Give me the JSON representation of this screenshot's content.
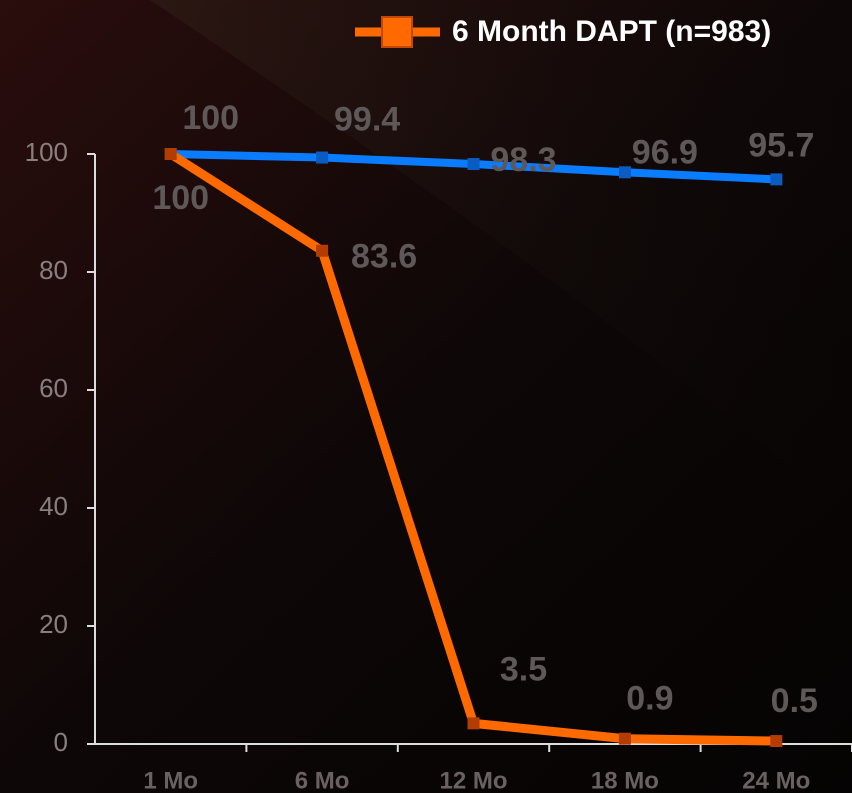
{
  "chart_data": {
    "type": "line",
    "categories": [
      "1 Mo",
      "6 Mo",
      "12 Mo",
      "18 Mo",
      "24 Mo"
    ],
    "series": [
      {
        "color": "#0a7cff",
        "values": [
          100,
          99.4,
          98.3,
          96.9,
          95.7
        ]
      },
      {
        "name": "6 Month DAPT (n=983)",
        "color": "#ff6a00",
        "values": [
          100,
          83.6,
          3.5,
          0.9,
          0.5
        ]
      }
    ],
    "ylim": [
      0,
      100
    ],
    "yticks": [
      0,
      20,
      40,
      60,
      80,
      100
    ],
    "legend": "top-right"
  }
}
